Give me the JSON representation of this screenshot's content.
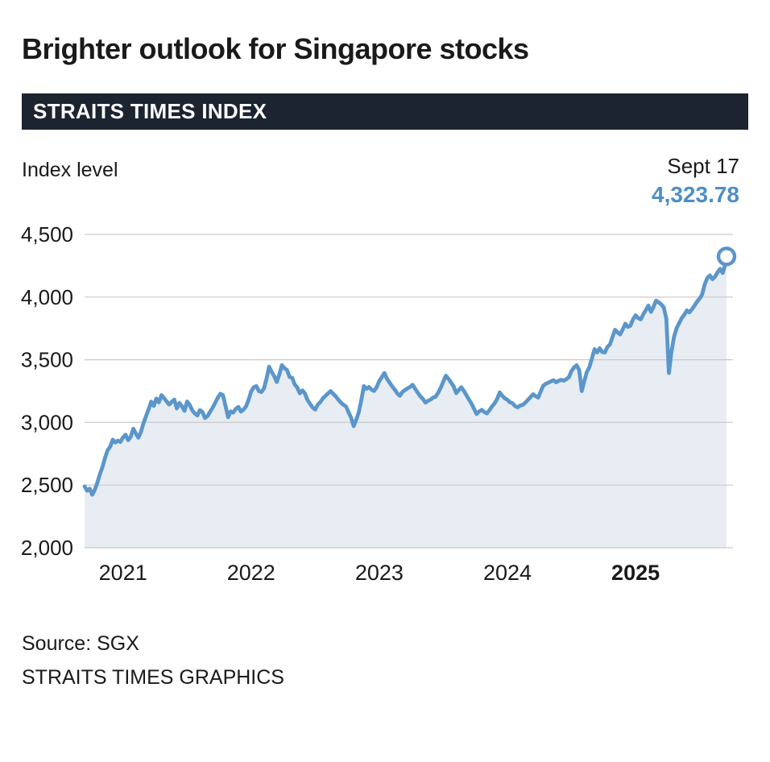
{
  "page": {
    "title": "Brighter outlook for Singapore stocks",
    "banner": "STRAITS TIMES INDEX",
    "source_line": "Source: SGX",
    "credit_line": "STRAITS TIMES GRAPHICS"
  },
  "axis": {
    "y_label": "Index level"
  },
  "annotation": {
    "date_label": "Sept 17",
    "value_label": "4,323.78"
  },
  "colors": {
    "accent_blue": "#5b96cb",
    "value_blue": "#4d8fc6",
    "area_fill": "#e8edf3",
    "banner_bg": "#1c2430",
    "grid": "#c9c9c9",
    "text_dark": "#1a1a1a"
  },
  "chart_data": {
    "type": "area",
    "title": "STRAITS TIMES INDEX",
    "xlabel": "",
    "ylabel": "Index level",
    "legend": "none",
    "grid": "horizontal",
    "x_domain": [
      2020.7,
      2025.76
    ],
    "y_domain": [
      2000,
      4500
    ],
    "y_ticks": [
      {
        "value": 4500,
        "label": "4,500"
      },
      {
        "value": 4000,
        "label": "4,000"
      },
      {
        "value": 3500,
        "label": "3,500"
      },
      {
        "value": 3000,
        "label": "3,000"
      },
      {
        "value": 2500,
        "label": "2,500"
      },
      {
        "value": 2000,
        "label": "2,000"
      }
    ],
    "x_ticks": [
      {
        "value": 2021,
        "label": "2021",
        "bold": false
      },
      {
        "value": 2022,
        "label": "2022",
        "bold": false
      },
      {
        "value": 2023,
        "label": "2023",
        "bold": false
      },
      {
        "value": 2024,
        "label": "2024",
        "bold": false
      },
      {
        "value": 2025,
        "label": "2025",
        "bold": true
      }
    ],
    "end_point": {
      "x": 2025.71,
      "y": 4323.78,
      "date": "Sept 17",
      "label": "4,323.78"
    },
    "series": [
      {
        "name": "Straits Times Index",
        "points": [
          [
            2020.7,
            2490
          ],
          [
            2020.72,
            2455
          ],
          [
            2020.74,
            2472
          ],
          [
            2020.76,
            2423
          ],
          [
            2020.78,
            2462
          ],
          [
            2020.8,
            2520
          ],
          [
            2020.82,
            2588
          ],
          [
            2020.84,
            2645
          ],
          [
            2020.86,
            2720
          ],
          [
            2020.88,
            2778
          ],
          [
            2020.9,
            2806
          ],
          [
            2020.92,
            2862
          ],
          [
            2020.94,
            2840
          ],
          [
            2020.96,
            2855
          ],
          [
            2020.98,
            2844
          ],
          [
            2021.0,
            2880
          ],
          [
            2021.02,
            2902
          ],
          [
            2021.04,
            2858
          ],
          [
            2021.06,
            2885
          ],
          [
            2021.08,
            2949
          ],
          [
            2021.1,
            2912
          ],
          [
            2021.12,
            2878
          ],
          [
            2021.14,
            2925
          ],
          [
            2021.16,
            2995
          ],
          [
            2021.18,
            3052
          ],
          [
            2021.2,
            3105
          ],
          [
            2021.22,
            3165
          ],
          [
            2021.24,
            3132
          ],
          [
            2021.26,
            3190
          ],
          [
            2021.28,
            3160
          ],
          [
            2021.3,
            3218
          ],
          [
            2021.32,
            3195
          ],
          [
            2021.34,
            3168
          ],
          [
            2021.36,
            3142
          ],
          [
            2021.38,
            3164
          ],
          [
            2021.4,
            3182
          ],
          [
            2021.42,
            3112
          ],
          [
            2021.44,
            3155
          ],
          [
            2021.46,
            3128
          ],
          [
            2021.48,
            3092
          ],
          [
            2021.5,
            3167
          ],
          [
            2021.52,
            3140
          ],
          [
            2021.54,
            3098
          ],
          [
            2021.56,
            3072
          ],
          [
            2021.58,
            3055
          ],
          [
            2021.6,
            3098
          ],
          [
            2021.62,
            3082
          ],
          [
            2021.64,
            3035
          ],
          [
            2021.66,
            3051
          ],
          [
            2021.68,
            3086
          ],
          [
            2021.7,
            3118
          ],
          [
            2021.72,
            3158
          ],
          [
            2021.74,
            3198
          ],
          [
            2021.76,
            3228
          ],
          [
            2021.78,
            3218
          ],
          [
            2021.8,
            3132
          ],
          [
            2021.82,
            3041
          ],
          [
            2021.84,
            3088
          ],
          [
            2021.86,
            3078
          ],
          [
            2021.88,
            3108
          ],
          [
            2021.9,
            3124
          ],
          [
            2021.92,
            3086
          ],
          [
            2021.94,
            3102
          ],
          [
            2021.96,
            3128
          ],
          [
            2021.98,
            3180
          ],
          [
            2022.0,
            3246
          ],
          [
            2022.02,
            3280
          ],
          [
            2022.04,
            3290
          ],
          [
            2022.06,
            3250
          ],
          [
            2022.08,
            3242
          ],
          [
            2022.1,
            3272
          ],
          [
            2022.12,
            3348
          ],
          [
            2022.14,
            3445
          ],
          [
            2022.16,
            3402
          ],
          [
            2022.18,
            3368
          ],
          [
            2022.2,
            3322
          ],
          [
            2022.22,
            3382
          ],
          [
            2022.24,
            3457
          ],
          [
            2022.26,
            3432
          ],
          [
            2022.28,
            3418
          ],
          [
            2022.3,
            3362
          ],
          [
            2022.32,
            3357
          ],
          [
            2022.34,
            3302
          ],
          [
            2022.36,
            3278
          ],
          [
            2022.38,
            3232
          ],
          [
            2022.4,
            3255
          ],
          [
            2022.42,
            3231
          ],
          [
            2022.44,
            3178
          ],
          [
            2022.46,
            3148
          ],
          [
            2022.48,
            3118
          ],
          [
            2022.5,
            3102
          ],
          [
            2022.52,
            3142
          ],
          [
            2022.54,
            3162
          ],
          [
            2022.56,
            3192
          ],
          [
            2022.58,
            3212
          ],
          [
            2022.6,
            3232
          ],
          [
            2022.62,
            3250
          ],
          [
            2022.64,
            3228
          ],
          [
            2022.66,
            3208
          ],
          [
            2022.68,
            3182
          ],
          [
            2022.7,
            3158
          ],
          [
            2022.72,
            3140
          ],
          [
            2022.74,
            3128
          ],
          [
            2022.76,
            3082
          ],
          [
            2022.78,
            3038
          ],
          [
            2022.8,
            2970
          ],
          [
            2022.82,
            3022
          ],
          [
            2022.84,
            3082
          ],
          [
            2022.86,
            3178
          ],
          [
            2022.88,
            3290
          ],
          [
            2022.9,
            3268
          ],
          [
            2022.92,
            3282
          ],
          [
            2022.94,
            3260
          ],
          [
            2022.96,
            3251
          ],
          [
            2022.98,
            3282
          ],
          [
            2023.0,
            3330
          ],
          [
            2023.02,
            3362
          ],
          [
            2023.04,
            3394
          ],
          [
            2023.06,
            3348
          ],
          [
            2023.08,
            3318
          ],
          [
            2023.1,
            3288
          ],
          [
            2023.12,
            3263
          ],
          [
            2023.14,
            3232
          ],
          [
            2023.16,
            3212
          ],
          [
            2023.18,
            3242
          ],
          [
            2023.2,
            3258
          ],
          [
            2023.22,
            3272
          ],
          [
            2023.24,
            3282
          ],
          [
            2023.26,
            3300
          ],
          [
            2023.28,
            3268
          ],
          [
            2023.3,
            3238
          ],
          [
            2023.32,
            3208
          ],
          [
            2023.34,
            3188
          ],
          [
            2023.36,
            3158
          ],
          [
            2023.38,
            3172
          ],
          [
            2023.4,
            3182
          ],
          [
            2023.42,
            3198
          ],
          [
            2023.44,
            3205
          ],
          [
            2023.46,
            3238
          ],
          [
            2023.48,
            3278
          ],
          [
            2023.5,
            3328
          ],
          [
            2023.52,
            3373
          ],
          [
            2023.54,
            3348
          ],
          [
            2023.56,
            3318
          ],
          [
            2023.58,
            3288
          ],
          [
            2023.6,
            3233
          ],
          [
            2023.62,
            3258
          ],
          [
            2023.64,
            3280
          ],
          [
            2023.66,
            3252
          ],
          [
            2023.68,
            3217
          ],
          [
            2023.7,
            3182
          ],
          [
            2023.72,
            3148
          ],
          [
            2023.74,
            3108
          ],
          [
            2023.76,
            3067
          ],
          [
            2023.78,
            3088
          ],
          [
            2023.8,
            3100
          ],
          [
            2023.82,
            3082
          ],
          [
            2023.84,
            3072
          ],
          [
            2023.86,
            3098
          ],
          [
            2023.88,
            3128
          ],
          [
            2023.9,
            3152
          ],
          [
            2023.92,
            3188
          ],
          [
            2023.94,
            3240
          ],
          [
            2023.96,
            3212
          ],
          [
            2023.98,
            3192
          ],
          [
            2024.0,
            3180
          ],
          [
            2024.02,
            3160
          ],
          [
            2024.04,
            3153
          ],
          [
            2024.06,
            3130
          ],
          [
            2024.08,
            3120
          ],
          [
            2024.1,
            3135
          ],
          [
            2024.12,
            3141
          ],
          [
            2024.14,
            3158
          ],
          [
            2024.16,
            3180
          ],
          [
            2024.18,
            3202
          ],
          [
            2024.2,
            3224
          ],
          [
            2024.22,
            3210
          ],
          [
            2024.24,
            3198
          ],
          [
            2024.26,
            3248
          ],
          [
            2024.28,
            3293
          ],
          [
            2024.3,
            3308
          ],
          [
            2024.32,
            3318
          ],
          [
            2024.34,
            3328
          ],
          [
            2024.36,
            3337
          ],
          [
            2024.38,
            3320
          ],
          [
            2024.4,
            3332
          ],
          [
            2024.42,
            3340
          ],
          [
            2024.44,
            3333
          ],
          [
            2024.46,
            3345
          ],
          [
            2024.48,
            3362
          ],
          [
            2024.5,
            3410
          ],
          [
            2024.52,
            3438
          ],
          [
            2024.54,
            3456
          ],
          [
            2024.56,
            3418
          ],
          [
            2024.58,
            3250
          ],
          [
            2024.6,
            3332
          ],
          [
            2024.62,
            3402
          ],
          [
            2024.64,
            3442
          ],
          [
            2024.66,
            3512
          ],
          [
            2024.68,
            3585
          ],
          [
            2024.7,
            3558
          ],
          [
            2024.72,
            3592
          ],
          [
            2024.74,
            3562
          ],
          [
            2024.76,
            3558
          ],
          [
            2024.78,
            3602
          ],
          [
            2024.8,
            3622
          ],
          [
            2024.82,
            3682
          ],
          [
            2024.84,
            3739
          ],
          [
            2024.86,
            3718
          ],
          [
            2024.88,
            3702
          ],
          [
            2024.9,
            3742
          ],
          [
            2024.92,
            3788
          ],
          [
            2024.94,
            3762
          ],
          [
            2024.96,
            3772
          ],
          [
            2024.98,
            3822
          ],
          [
            2025.0,
            3855
          ],
          [
            2025.02,
            3832
          ],
          [
            2025.04,
            3822
          ],
          [
            2025.06,
            3862
          ],
          [
            2025.08,
            3895
          ],
          [
            2025.1,
            3932
          ],
          [
            2025.12,
            3882
          ],
          [
            2025.14,
            3922
          ],
          [
            2025.16,
            3972
          ],
          [
            2025.18,
            3958
          ],
          [
            2025.2,
            3942
          ],
          [
            2025.22,
            3918
          ],
          [
            2025.24,
            3828
          ],
          [
            2025.26,
            3394
          ],
          [
            2025.28,
            3562
          ],
          [
            2025.3,
            3682
          ],
          [
            2025.32,
            3752
          ],
          [
            2025.34,
            3792
          ],
          [
            2025.36,
            3832
          ],
          [
            2025.38,
            3858
          ],
          [
            2025.4,
            3894
          ],
          [
            2025.42,
            3878
          ],
          [
            2025.44,
            3902
          ],
          [
            2025.46,
            3932
          ],
          [
            2025.48,
            3964
          ],
          [
            2025.5,
            3988
          ],
          [
            2025.52,
            4022
          ],
          [
            2025.54,
            4102
          ],
          [
            2025.56,
            4152
          ],
          [
            2025.58,
            4173
          ],
          [
            2025.6,
            4142
          ],
          [
            2025.62,
            4162
          ],
          [
            2025.64,
            4198
          ],
          [
            2025.66,
            4225
          ],
          [
            2025.68,
            4192
          ],
          [
            2025.7,
            4262
          ],
          [
            2025.71,
            4323.78
          ]
        ]
      }
    ]
  }
}
